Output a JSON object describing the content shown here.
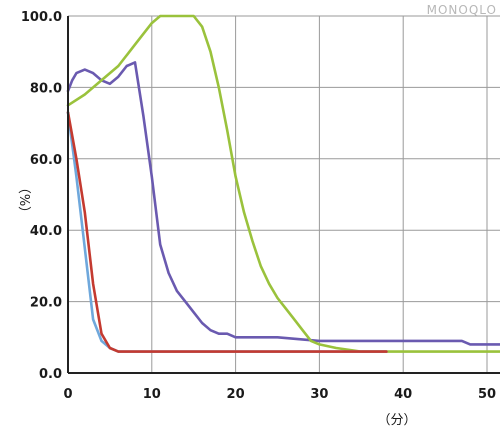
{
  "watermark": "MONOQLO",
  "chart_data": {
    "type": "line",
    "xlabel": "（分）",
    "ylabel": "（%）",
    "xlim": [
      0,
      52
    ],
    "ylim": [
      0,
      100
    ],
    "x_ticks": [
      0,
      10,
      20,
      30,
      40,
      50
    ],
    "x_tick_labels": [
      "0",
      "10",
      "20",
      "30",
      "40",
      "50"
    ],
    "y_ticks": [
      0,
      20,
      40,
      60,
      80,
      100
    ],
    "y_tick_labels": [
      "0.0",
      "20.0",
      "40.0",
      "60.0",
      "80.0",
      "100.0"
    ],
    "grid": true,
    "legend": "none",
    "series": [
      {
        "color": "#6a5ab0",
        "points": [
          [
            0,
            79
          ],
          [
            0.5,
            82
          ],
          [
            1,
            84
          ],
          [
            2,
            85
          ],
          [
            3,
            84
          ],
          [
            4,
            82
          ],
          [
            5,
            81
          ],
          [
            6,
            83
          ],
          [
            7,
            86
          ],
          [
            8,
            87
          ],
          [
            9,
            72
          ],
          [
            10,
            55
          ],
          [
            11,
            36
          ],
          [
            12,
            28
          ],
          [
            13,
            23
          ],
          [
            14,
            20
          ],
          [
            15,
            17
          ],
          [
            16,
            14
          ],
          [
            17,
            12
          ],
          [
            18,
            11
          ],
          [
            19,
            11
          ],
          [
            20,
            10
          ],
          [
            25,
            10
          ],
          [
            30,
            9
          ],
          [
            35,
            9
          ],
          [
            40,
            9
          ],
          [
            45,
            9
          ],
          [
            47,
            9
          ],
          [
            48,
            8
          ],
          [
            52,
            8
          ]
        ]
      },
      {
        "color": "#9ac23c",
        "points": [
          [
            0,
            75
          ],
          [
            2,
            78
          ],
          [
            4,
            82
          ],
          [
            6,
            86
          ],
          [
            8,
            92
          ],
          [
            10,
            98
          ],
          [
            11,
            100
          ],
          [
            15,
            100
          ],
          [
            16,
            97
          ],
          [
            17,
            90
          ],
          [
            18,
            80
          ],
          [
            19,
            68
          ],
          [
            20,
            55
          ],
          [
            21,
            45
          ],
          [
            22,
            37
          ],
          [
            23,
            30
          ],
          [
            24,
            25
          ],
          [
            25,
            21
          ],
          [
            26,
            18
          ],
          [
            27,
            15
          ],
          [
            28,
            12
          ],
          [
            29,
            9
          ],
          [
            30,
            8
          ],
          [
            32,
            7
          ],
          [
            35,
            6
          ],
          [
            40,
            6
          ],
          [
            50,
            6
          ],
          [
            52,
            6
          ]
        ]
      },
      {
        "color": "#6fa8dc",
        "points": [
          [
            0,
            73
          ],
          [
            1,
            55
          ],
          [
            2,
            35
          ],
          [
            3,
            15
          ],
          [
            4,
            9
          ],
          [
            5,
            7
          ],
          [
            6,
            6
          ],
          [
            10,
            6
          ],
          [
            20,
            6
          ],
          [
            30,
            6
          ],
          [
            38,
            6
          ]
        ]
      },
      {
        "color": "#c43a30",
        "points": [
          [
            0,
            73
          ],
          [
            1,
            60
          ],
          [
            2,
            45
          ],
          [
            3,
            25
          ],
          [
            4,
            11
          ],
          [
            5,
            7
          ],
          [
            6,
            6
          ],
          [
            10,
            6
          ],
          [
            20,
            6
          ],
          [
            30,
            6
          ],
          [
            38,
            6
          ]
        ]
      }
    ]
  }
}
